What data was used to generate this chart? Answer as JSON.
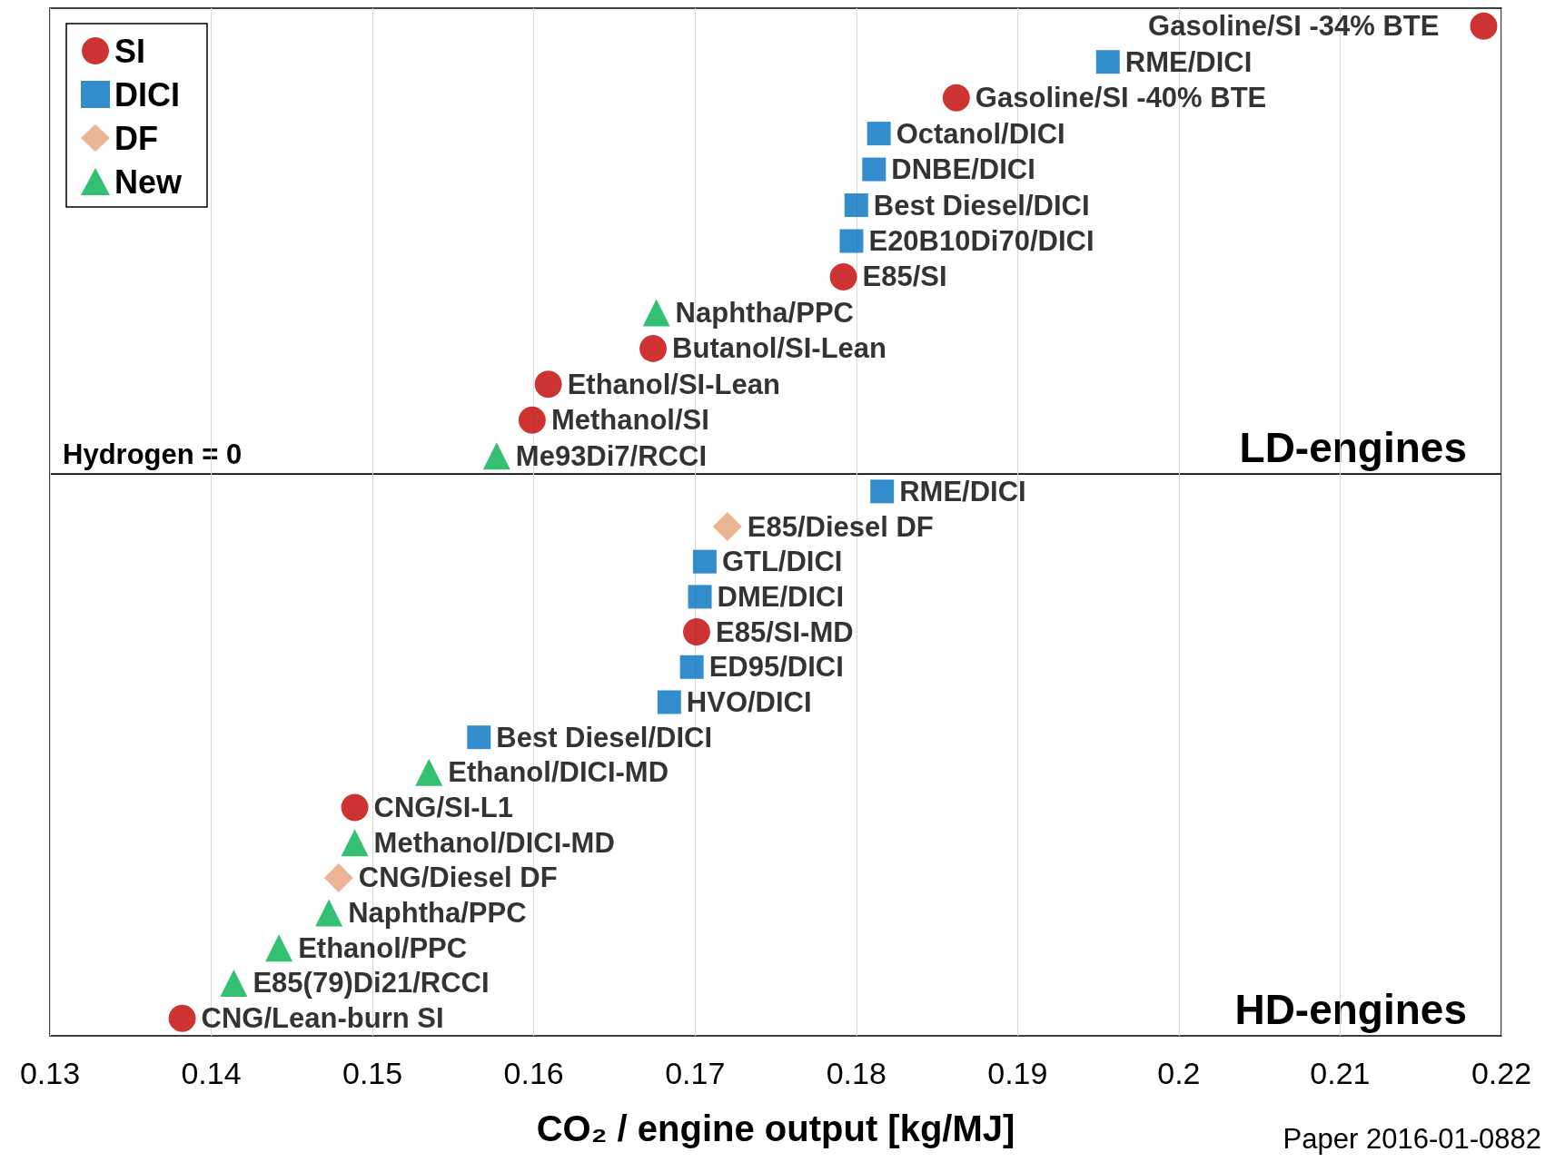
{
  "chart_data": [
    {
      "type": "scatter",
      "orientation": "horizontal",
      "categories": [
        "Gasoline/SI -34% BTE",
        "RME/DICI",
        "Gasoline/SI -40% BTE",
        "Octanol/DICI",
        "DNBE/DICI",
        "Best Diesel/DICI",
        "E20B10Di70/DICI",
        "E85/SI",
        "Naphtha/PPC",
        "Butanol/SI-Lean",
        "Ethanol/SI-Lean",
        "Methanol/SI",
        "Me93Di7/RCCI"
      ],
      "series": [
        {
          "name": "SI",
          "color": "#c00000",
          "marker": "circle",
          "values": [
            0.2189,
            null,
            0.1862,
            null,
            null,
            null,
            null,
            0.1792,
            null,
            0.1674,
            0.1609,
            0.1599,
            null
          ]
        },
        {
          "name": "DICI",
          "color": "#0070c0",
          "marker": "square",
          "values": [
            null,
            0.1956,
            null,
            0.1814,
            0.1811,
            0.18,
            0.1797,
            null,
            null,
            null,
            null,
            null,
            null
          ]
        },
        {
          "name": "DF",
          "color": "#e6a27a",
          "marker": "diamond",
          "values": [
            null,
            null,
            null,
            null,
            null,
            null,
            null,
            null,
            null,
            null,
            null,
            null,
            null
          ]
        },
        {
          "name": "New",
          "color": "#00b050",
          "marker": "triangle",
          "values": [
            null,
            null,
            null,
            null,
            null,
            null,
            null,
            null,
            0.1676,
            null,
            null,
            null,
            0.1577
          ]
        }
      ],
      "xlim": [
        0.13,
        0.22
      ],
      "xticks": [
        0.13,
        0.14,
        0.15,
        0.16,
        0.17,
        0.18,
        0.19,
        0.2,
        0.21,
        0.22
      ],
      "grid": "x",
      "legend": "top left",
      "tick_labels": false,
      "annotations": [
        "Hydrogen = 0",
        "LD-engines"
      ]
    },
    {
      "type": "scatter",
      "orientation": "horizontal",
      "categories": [
        "RME/DICI",
        "E85/Diesel DF",
        "GTL/DICI",
        "DME/DICI",
        "E85/SI-MD",
        "ED95/DICI",
        "HVO/DICI",
        "Best Diesel/DICI",
        "Ethanol/DICI-MD",
        "CNG/SI-L1",
        "Methanol/DICI-MD",
        "CNG/Diesel DF",
        "Naphtha/PPC",
        "Ethanol/PPC",
        "E85(79)Di21/RCCI",
        "CNG/Lean-burn SI"
      ],
      "series": [
        {
          "color": "#c00000",
          "marker": "circle",
          "values": [
            null,
            null,
            null,
            null,
            0.1701,
            null,
            null,
            null,
            null,
            0.1489,
            null,
            null,
            null,
            null,
            null,
            0.1382
          ]
        },
        {
          "color": "#0070c0",
          "marker": "square",
          "values": [
            0.1816,
            null,
            0.1706,
            0.1703,
            null,
            0.1698,
            0.1684,
            0.1566,
            null,
            null,
            null,
            null,
            null,
            null,
            null,
            null
          ]
        },
        {
          "color": "#e6a27a",
          "marker": "diamond",
          "values": [
            null,
            0.172,
            null,
            null,
            null,
            null,
            null,
            null,
            null,
            null,
            null,
            0.1479,
            null,
            null,
            null,
            null
          ]
        },
        {
          "color": "#00b050",
          "marker": "triangle",
          "values": [
            null,
            null,
            null,
            null,
            null,
            null,
            null,
            null,
            0.1535,
            null,
            0.1489,
            null,
            0.1473,
            0.1442,
            0.1414,
            null
          ]
        }
      ],
      "xlim": [
        0.13,
        0.22
      ],
      "xticks": [
        0.13,
        0.14,
        0.15,
        0.16,
        0.17,
        0.18,
        0.19,
        0.2,
        0.21,
        0.22
      ],
      "grid": "x",
      "tick_labels": "x",
      "xlabel": "CO₂ / engine output [kg/MJ]",
      "annotations": [
        "HD-engines",
        "Paper 2016-01-0882"
      ]
    }
  ]
}
